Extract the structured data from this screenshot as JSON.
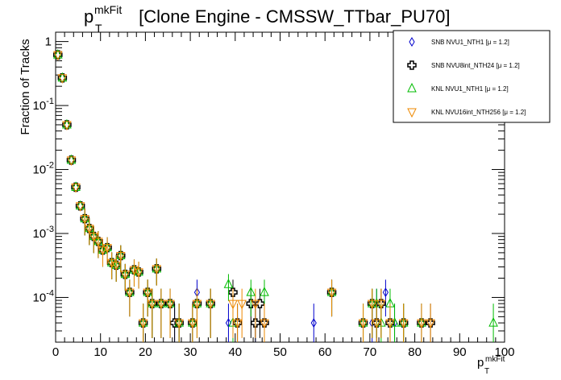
{
  "chart_data": {
    "type": "scatter",
    "title": {
      "main": "p",
      "sup": "mkFit",
      "sub": "T",
      "rest": " [Clone Engine - CMSSW_TTbar_PU70]"
    },
    "xlabel": {
      "main": "p",
      "sup": "mkFit",
      "sub": "T"
    },
    "ylabel": "Fraction of Tracks",
    "xlim": [
      0,
      100
    ],
    "ylim": [
      2e-05,
      1.4
    ],
    "yscale": "log",
    "grid": false,
    "legend_position": "top-right",
    "x_ticks": [
      "0",
      "10",
      "20",
      "30",
      "40",
      "50",
      "60",
      "70",
      "80",
      "90",
      "100"
    ],
    "y_ticks": [
      {
        "value": 1,
        "base": "1",
        "exp": ""
      },
      {
        "value": 0.1,
        "base": "10",
        "exp": "-1"
      },
      {
        "value": 0.01,
        "base": "10",
        "exp": "-2"
      },
      {
        "value": 0.001,
        "base": "10",
        "exp": "-3"
      },
      {
        "value": 0.0001,
        "base": "10",
        "exp": "-4"
      }
    ],
    "series": [
      {
        "name": "SNB NVU1_NTH1 [μ = 1.2]",
        "marker": "diamond",
        "color": "#0000cc",
        "points": [
          [
            0.5,
            0.62
          ],
          [
            1.5,
            0.27
          ],
          [
            2.5,
            0.05
          ],
          [
            3.5,
            0.014
          ],
          [
            4.5,
            0.0053
          ],
          [
            5.5,
            0.0027
          ],
          [
            6.5,
            0.0017
          ],
          [
            7.5,
            0.0012
          ],
          [
            8.5,
            0.0009
          ],
          [
            9.5,
            0.00075
          ],
          [
            10.5,
            0.00055
          ],
          [
            11.5,
            0.0006
          ],
          [
            12.5,
            0.00035
          ],
          [
            13.5,
            0.00032
          ],
          [
            14.5,
            0.00045
          ],
          [
            15.5,
            0.00023
          ],
          [
            16.5,
            0.00012
          ],
          [
            17.5,
            0.00027
          ],
          [
            18.5,
            0.00025
          ],
          [
            19.5,
            4e-05
          ],
          [
            20.5,
            0.00012
          ],
          [
            21.5,
            8e-05
          ],
          [
            22.5,
            0.00028
          ],
          [
            23.5,
            8e-05
          ],
          [
            25.5,
            8e-05
          ],
          [
            26.5,
            4e-05
          ],
          [
            27.5,
            4e-05
          ],
          [
            30.5,
            4e-05
          ],
          [
            31.5,
            0.00012
          ],
          [
            34.5,
            8e-05
          ],
          [
            38.5,
            4e-05
          ],
          [
            44.5,
            4e-05
          ],
          [
            57.5,
            4e-05
          ],
          [
            61.5,
            0.00012
          ],
          [
            70.5,
            4e-05
          ],
          [
            71.5,
            8e-05
          ],
          [
            73.5,
            0.00012
          ],
          [
            75.5,
            4e-05
          ],
          [
            81.5,
            4e-05
          ]
        ]
      },
      {
        "name": "SNB NVU8int_NTH24 [μ = 1.2]",
        "marker": "cross",
        "color": "#000000",
        "points": [
          [
            0.5,
            0.62
          ],
          [
            1.5,
            0.27
          ],
          [
            2.5,
            0.05
          ],
          [
            3.5,
            0.014
          ],
          [
            4.5,
            0.0053
          ],
          [
            5.5,
            0.0027
          ],
          [
            6.5,
            0.0017
          ],
          [
            7.5,
            0.0012
          ],
          [
            8.5,
            0.0009
          ],
          [
            9.5,
            0.00075
          ],
          [
            10.5,
            0.00055
          ],
          [
            11.5,
            0.0006
          ],
          [
            12.5,
            0.00035
          ],
          [
            13.5,
            0.00032
          ],
          [
            14.5,
            0.00045
          ],
          [
            15.5,
            0.00023
          ],
          [
            16.5,
            0.00012
          ],
          [
            17.5,
            0.00027
          ],
          [
            18.5,
            0.00025
          ],
          [
            19.5,
            4e-05
          ],
          [
            20.5,
            0.00012
          ],
          [
            21.5,
            8e-05
          ],
          [
            22.5,
            0.00028
          ],
          [
            23.5,
            8e-05
          ],
          [
            25.5,
            8e-05
          ],
          [
            26.5,
            4e-05
          ],
          [
            27.5,
            4e-05
          ],
          [
            30.5,
            4e-05
          ],
          [
            31.5,
            8e-05
          ],
          [
            34.5,
            8e-05
          ],
          [
            39.5,
            0.00012
          ],
          [
            40.5,
            4e-05
          ],
          [
            43.5,
            8e-05
          ],
          [
            44.5,
            4e-05
          ],
          [
            45.5,
            8e-05
          ],
          [
            46.5,
            4e-05
          ],
          [
            61.5,
            0.00012
          ],
          [
            68.5,
            4e-05
          ],
          [
            70.5,
            8e-05
          ],
          [
            71.5,
            4e-05
          ],
          [
            72.5,
            8e-05
          ],
          [
            74.5,
            4e-05
          ],
          [
            77.5,
            4e-05
          ],
          [
            81.5,
            4e-05
          ],
          [
            83.5,
            4e-05
          ]
        ]
      },
      {
        "name": "KNL NVU1_NTH1 [μ = 1.2]",
        "marker": "triangle-up",
        "color": "#00bb00",
        "points": [
          [
            0.5,
            0.62
          ],
          [
            1.5,
            0.27
          ],
          [
            2.5,
            0.05
          ],
          [
            3.5,
            0.014
          ],
          [
            4.5,
            0.0053
          ],
          [
            5.5,
            0.0027
          ],
          [
            6.5,
            0.0017
          ],
          [
            7.5,
            0.0012
          ],
          [
            8.5,
            0.0009
          ],
          [
            9.5,
            0.00075
          ],
          [
            10.5,
            0.00055
          ],
          [
            11.5,
            0.0006
          ],
          [
            12.5,
            0.00035
          ],
          [
            13.5,
            0.00032
          ],
          [
            14.5,
            0.00045
          ],
          [
            15.5,
            0.00023
          ],
          [
            16.5,
            0.00012
          ],
          [
            17.5,
            0.00027
          ],
          [
            18.5,
            0.00025
          ],
          [
            19.5,
            4e-05
          ],
          [
            20.5,
            0.00012
          ],
          [
            21.5,
            8e-05
          ],
          [
            22.5,
            0.00028
          ],
          [
            23.5,
            8e-05
          ],
          [
            25.5,
            8e-05
          ],
          [
            27.5,
            4e-05
          ],
          [
            30.5,
            4e-05
          ],
          [
            31.5,
            8e-05
          ],
          [
            34.5,
            8e-05
          ],
          [
            38.5,
            0.00016
          ],
          [
            39.5,
            4e-05
          ],
          [
            43.5,
            0.00012
          ],
          [
            46.5,
            0.00012
          ],
          [
            61.5,
            0.00012
          ],
          [
            68.5,
            4e-05
          ],
          [
            70.5,
            8e-05
          ],
          [
            71.5,
            8e-05
          ],
          [
            72.5,
            4e-05
          ],
          [
            74.5,
            8e-05
          ],
          [
            75.5,
            4e-05
          ],
          [
            77.5,
            4e-05
          ],
          [
            81.5,
            4e-05
          ],
          [
            97.5,
            4e-05
          ]
        ]
      },
      {
        "name": "KNL NVU16int_NTH256 [μ = 1.2]",
        "marker": "triangle-down",
        "color": "#ee8800",
        "points": [
          [
            0.5,
            0.62
          ],
          [
            1.5,
            0.27
          ],
          [
            2.5,
            0.05
          ],
          [
            3.5,
            0.014
          ],
          [
            4.5,
            0.0053
          ],
          [
            5.5,
            0.0027
          ],
          [
            6.5,
            0.0017
          ],
          [
            7.5,
            0.0012
          ],
          [
            8.5,
            0.0009
          ],
          [
            9.5,
            0.00075
          ],
          [
            10.5,
            0.00055
          ],
          [
            11.5,
            0.0006
          ],
          [
            12.5,
            0.00035
          ],
          [
            13.5,
            0.00032
          ],
          [
            14.5,
            0.00045
          ],
          [
            15.5,
            0.00023
          ],
          [
            16.5,
            0.00012
          ],
          [
            17.5,
            0.00027
          ],
          [
            18.5,
            0.00025
          ],
          [
            19.5,
            4e-05
          ],
          [
            20.5,
            0.00012
          ],
          [
            21.5,
            8e-05
          ],
          [
            22.5,
            0.00028
          ],
          [
            23.5,
            8e-05
          ],
          [
            25.5,
            8e-05
          ],
          [
            27.5,
            4e-05
          ],
          [
            30.5,
            4e-05
          ],
          [
            31.5,
            8e-05
          ],
          [
            34.5,
            8e-05
          ],
          [
            39.5,
            8e-05
          ],
          [
            40.5,
            4e-05
          ],
          [
            41.5,
            8e-05
          ],
          [
            44.5,
            8e-05
          ],
          [
            46.5,
            4e-05
          ],
          [
            61.5,
            0.00012
          ],
          [
            68.5,
            4e-05
          ],
          [
            70.5,
            8e-05
          ],
          [
            71.5,
            4e-05
          ],
          [
            72.5,
            8e-05
          ],
          [
            74.5,
            4e-05
          ],
          [
            77.5,
            4e-05
          ],
          [
            81.5,
            4e-05
          ],
          [
            83.5,
            4e-05
          ]
        ]
      }
    ]
  }
}
